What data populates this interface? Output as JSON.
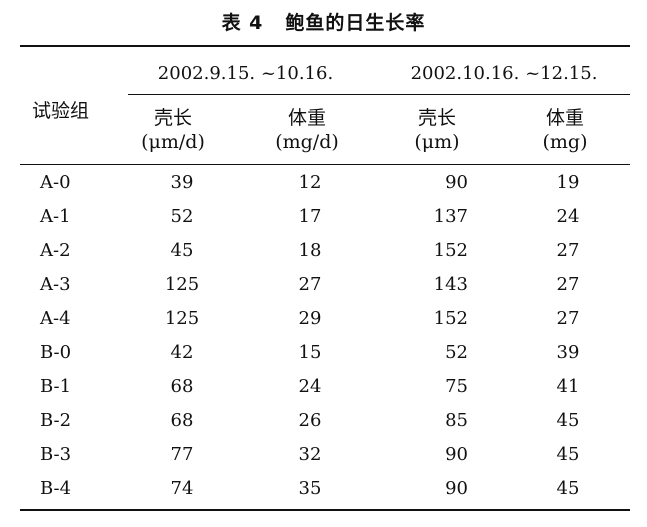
{
  "table": {
    "caption_number": "表 4",
    "caption_title": "鲍鱼的日生长率",
    "row_header": "试验组",
    "periods": [
      "2002.9.15. ~10.16.",
      "2002.10.16. ~12.15."
    ],
    "columns": [
      {
        "name": "壳长",
        "unit": "(μm/d)"
      },
      {
        "name": "体重",
        "unit": "(mg/d)"
      },
      {
        "name": "壳长",
        "unit": "(μm)"
      },
      {
        "name": "体重",
        "unit": "(mg)"
      }
    ],
    "rows": [
      {
        "group": "A-0",
        "values": [
          "39",
          "12",
          "90",
          "19"
        ]
      },
      {
        "group": "A-1",
        "values": [
          "52",
          "17",
          "137",
          "24"
        ]
      },
      {
        "group": "A-2",
        "values": [
          "45",
          "18",
          "152",
          "27"
        ]
      },
      {
        "group": "A-3",
        "values": [
          "125",
          "27",
          "143",
          "27"
        ]
      },
      {
        "group": "A-4",
        "values": [
          "125",
          "29",
          "152",
          "27"
        ]
      },
      {
        "group": "B-0",
        "values": [
          "42",
          "15",
          "52",
          "39"
        ]
      },
      {
        "group": "B-1",
        "values": [
          "68",
          "24",
          "75",
          "41"
        ]
      },
      {
        "group": "B-2",
        "values": [
          "68",
          "26",
          "85",
          "45"
        ]
      },
      {
        "group": "B-3",
        "values": [
          "77",
          "32",
          "90",
          "45"
        ]
      },
      {
        "group": "B-4",
        "values": [
          "74",
          "35",
          "90",
          "45"
        ]
      }
    ]
  }
}
